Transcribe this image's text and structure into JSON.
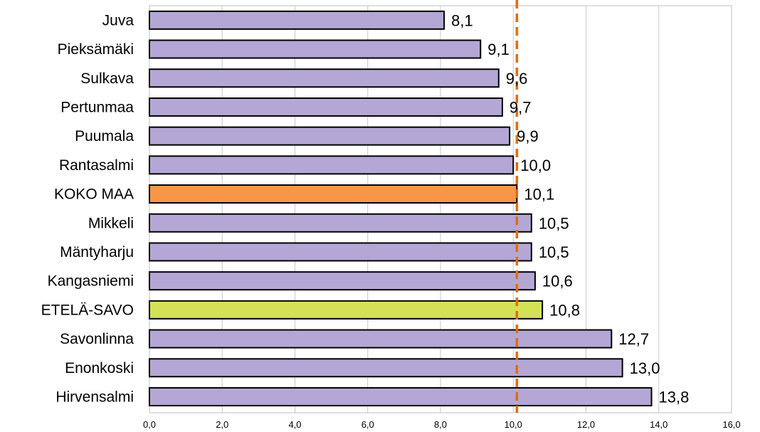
{
  "chart_data": {
    "type": "bar",
    "orientation": "horizontal",
    "categories": [
      "Juva",
      "Pieksämäki",
      "Sulkava",
      "Pertunmaa",
      "Puumala",
      "Rantasalmi",
      "KOKO MAA",
      "Mikkeli",
      "Mäntyharju",
      "Kangasniemi",
      "ETELÄ-SAVO",
      "Savonlinna",
      "Enonkoski",
      "Hirvensalmi"
    ],
    "values": [
      8.1,
      9.1,
      9.6,
      9.7,
      9.9,
      10.0,
      10.1,
      10.5,
      10.5,
      10.6,
      10.8,
      12.7,
      13.0,
      13.8
    ],
    "value_labels": [
      "8,1",
      "9,1",
      "9,6",
      "9,7",
      "9,9",
      "10,0",
      "10,1",
      "10,5",
      "10,5",
      "10,6",
      "10,8",
      "12,7",
      "13,0",
      "13,8"
    ],
    "ticks": [
      0,
      2,
      4,
      6,
      8,
      10,
      12,
      14,
      16
    ],
    "tick_labels": [
      "0,0",
      "2,0",
      "4,0",
      "6,0",
      "8,0",
      "10,0",
      "12,0",
      "14,0",
      "16,0"
    ],
    "xlim": [
      0,
      16
    ],
    "reference_line": 10.1,
    "title": "",
    "xlabel": "",
    "ylabel": "",
    "grid": "vertical",
    "legend": "none",
    "colors": {
      "default_bar": "#b4a7d6",
      "highlight_koko_maa": "#f79646",
      "highlight_etela_savo": "#d4e157",
      "bar_border": "#000000",
      "reference_line": "#e36c0a",
      "grid": "#c8c8c8"
    }
  }
}
